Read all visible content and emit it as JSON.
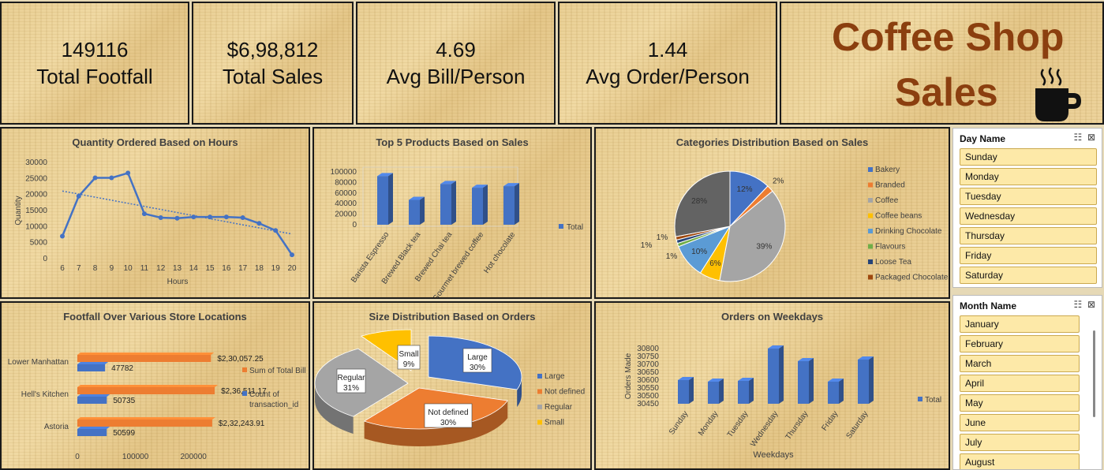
{
  "kpis": [
    {
      "value": "149116",
      "label": "Total Footfall"
    },
    {
      "value": "$6,98,812",
      "label": "Total Sales"
    },
    {
      "value": "4.69",
      "label": "Avg Bill/Person"
    },
    {
      "value": "1.44",
      "label": "Avg Order/Person"
    }
  ],
  "brand": {
    "line1": "Coffee Shop",
    "line2": "Sales",
    "icon": "coffee-cup-icon",
    "color": "#8b3f0f"
  },
  "slicers": {
    "day": {
      "title": "Day Name",
      "items": [
        "Sunday",
        "Monday",
        "Tuesday",
        "Wednesday",
        "Thursday",
        "Friday",
        "Saturday"
      ]
    },
    "month": {
      "title": "Month Name",
      "items": [
        "January",
        "February",
        "March",
        "April",
        "May",
        "June",
        "July",
        "August"
      ]
    },
    "icons": [
      "multi-select-icon",
      "clear-filter-icon"
    ]
  },
  "chart_data": [
    {
      "type": "line",
      "title": "Quantity Ordered Based on Hours",
      "xlabel": "Hours",
      "ylabel": "Quantity",
      "x": [
        6,
        7,
        8,
        9,
        10,
        11,
        12,
        13,
        14,
        15,
        16,
        17,
        18,
        19,
        20
      ],
      "values": [
        7000,
        19500,
        25200,
        25200,
        26700,
        14000,
        12800,
        12600,
        13000,
        13000,
        13000,
        12800,
        11000,
        8800,
        1200
      ],
      "ylim": [
        0,
        30000
      ],
      "yticks": [
        "0",
        "5000",
        "10000",
        "15000",
        "20000",
        "25000",
        "30000"
      ],
      "trendline": true,
      "color": "#4472c4"
    },
    {
      "type": "bar",
      "title": "Top 5 Products Based on Sales",
      "categories": [
        "Barista Espresso",
        "Brewed Black tea",
        "Brewed Chai tea",
        "Gourmet brewed coffee",
        "Hot chocolate"
      ],
      "values": [
        92000,
        47000,
        77000,
        70000,
        73000
      ],
      "ylim": [
        0,
        100000
      ],
      "yticks": [
        "0",
        "20000",
        "40000",
        "60000",
        "80000",
        "100000"
      ],
      "legend": "Total",
      "color": "#4472c4"
    },
    {
      "type": "pie",
      "title": "Categories Distribution Based on Sales",
      "slices": [
        {
          "name": "Bakery",
          "value": 12,
          "label": "12%",
          "color": "#4472c4"
        },
        {
          "name": "Branded",
          "value": 2,
          "label": "2%",
          "color": "#ed7d31"
        },
        {
          "name": "Coffee",
          "value": 39,
          "label": "39%",
          "color": "#a5a5a5"
        },
        {
          "name": "Coffee beans",
          "value": 6,
          "label": "6%",
          "color": "#ffc000"
        },
        {
          "name": "Drinking Chocolate",
          "value": 10,
          "label": "10%",
          "color": "#5b9bd5"
        },
        {
          "name": "Flavours",
          "value": 1,
          "label": "1%",
          "color": "#70ad47"
        },
        {
          "name": "Loose Tea",
          "value": 1,
          "label": "1%",
          "color": "#264478"
        },
        {
          "name": "Packaged Chocolate",
          "value": 1,
          "label": "",
          "color": "#9e480e"
        },
        {
          "name": "",
          "value": 28,
          "label": "28%",
          "color": "#636363"
        }
      ]
    },
    {
      "type": "bar",
      "title": "Footfall Over Various Store Locations",
      "orientation": "horizontal",
      "categories": [
        "Lower Manhattan",
        "Hell's Kitchen",
        "Astoria"
      ],
      "series": [
        {
          "name": "Sum of Total Bill",
          "values": [
            230057.25,
            236511.17,
            232243.91
          ],
          "labels": [
            "$2,30,057.25",
            "$2,36,511.17",
            "$2,32,243.91"
          ],
          "color": "#ed7d31"
        },
        {
          "name": "Count of transaction_id",
          "values": [
            47782,
            50735,
            50599
          ],
          "labels": [
            "47782",
            "50735",
            "50599"
          ],
          "color": "#4472c4"
        }
      ],
      "xlim": [
        0,
        250000
      ],
      "xticks": [
        "0",
        "100000",
        "200000"
      ]
    },
    {
      "type": "pie",
      "title": "Size Distribution Based on Orders",
      "slices": [
        {
          "name": "Large",
          "value": 30,
          "label": "Large\n30%",
          "color": "#4472c4"
        },
        {
          "name": "Not defined",
          "value": 30,
          "label": "Not defined\n30%",
          "color": "#ed7d31"
        },
        {
          "name": "Regular",
          "value": 31,
          "label": "Regular\n31%",
          "color": "#a5a5a5"
        },
        {
          "name": "Small",
          "value": 9,
          "label": "Small\n9%",
          "color": "#ffc000"
        }
      ]
    },
    {
      "type": "bar",
      "title": "Orders on Weekdays",
      "xlabel": "Weekdays",
      "ylabel": "Orders Made",
      "categories": [
        "Sunday",
        "Monday",
        "Tuesday",
        "Wednesday",
        "Thursday",
        "Friday",
        "Saturday"
      ],
      "values": [
        30600,
        30590,
        30595,
        30800,
        30720,
        30590,
        30730
      ],
      "ylim": [
        30450,
        30800
      ],
      "yticks": [
        "30450",
        "30500",
        "30550",
        "30600",
        "30650",
        "30700",
        "30750",
        "30800"
      ],
      "legend": "Total",
      "color": "#4472c4"
    }
  ]
}
